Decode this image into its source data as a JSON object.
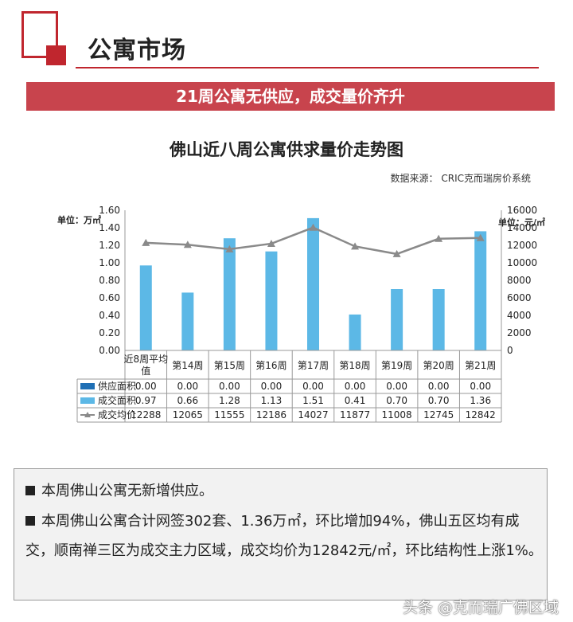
{
  "section": {
    "title": "公寓市场"
  },
  "headline": "21周公寓无供应，成交量价齐升",
  "chart_title": "佛山近八周公寓供求量价走势图",
  "source": "数据来源：  CRIC克而瑞房价系统",
  "units": {
    "left": "单位：万㎡",
    "right": "单位：元/㎡"
  },
  "chart_data": {
    "type": "bar",
    "title": "佛山近八周公寓供求量价走势图",
    "categories": [
      "近8周平均值",
      "第14周",
      "第15周",
      "第16周",
      "第17周",
      "第18周",
      "第19周",
      "第20周",
      "第21周"
    ],
    "series": [
      {
        "name": "供应面积",
        "type": "bar",
        "axis": "left",
        "color": "#1f6fb5",
        "values": [
          0.0,
          0.0,
          0.0,
          0.0,
          0.0,
          0.0,
          0.0,
          0.0,
          0.0
        ]
      },
      {
        "name": "成交面积",
        "type": "bar",
        "axis": "left",
        "color": "#5cb8e6",
        "values": [
          0.97,
          0.66,
          1.28,
          1.13,
          1.51,
          0.41,
          0.7,
          0.7,
          1.36
        ]
      },
      {
        "name": "成交均价",
        "type": "line",
        "axis": "right",
        "color": "#8a8a8a",
        "values": [
          12288,
          12065,
          11555,
          12186,
          14027,
          11877,
          11008,
          12745,
          12842
        ]
      }
    ],
    "table_labels": [
      "0.00",
      "0.00",
      "0.00",
      "0.00",
      "0.00",
      "0.00",
      "0.00",
      "0.00",
      "0.00"
    ],
    "area_labels": [
      "0.97",
      "0.66",
      "1.28",
      "1.13",
      "1.51",
      "0.41",
      "0.70",
      "0.70",
      "1.36"
    ],
    "price_labels": [
      "12288",
      "12065",
      "11555",
      "12186",
      "14027",
      "11877",
      "11008",
      "12745",
      "12842"
    ],
    "y_left": {
      "min": 0,
      "max": 1.6,
      "ticks": [
        "0.00",
        "0.20",
        "0.40",
        "0.60",
        "0.80",
        "1.00",
        "1.20",
        "1.40",
        "1.60"
      ]
    },
    "y_right": {
      "min": 0,
      "max": 16000,
      "ticks": [
        "0",
        "2000",
        "4000",
        "6000",
        "8000",
        "10000",
        "12000",
        "14000",
        "16000"
      ]
    },
    "legend": "table"
  },
  "notes": [
    "本周佛山公寓无新增供应。",
    "本周佛山公寓合计网签302套、1.36万㎡，环比增加94%，佛山五区均有成交，顺南禅三区为成交主力区域，成交均价为12842元/㎡，环比结构性上涨1%。"
  ],
  "footer": "头条 @克而瑞广佛区域",
  "colors": {
    "brand_red": "#c0262e",
    "banner": "#c8444d"
  }
}
